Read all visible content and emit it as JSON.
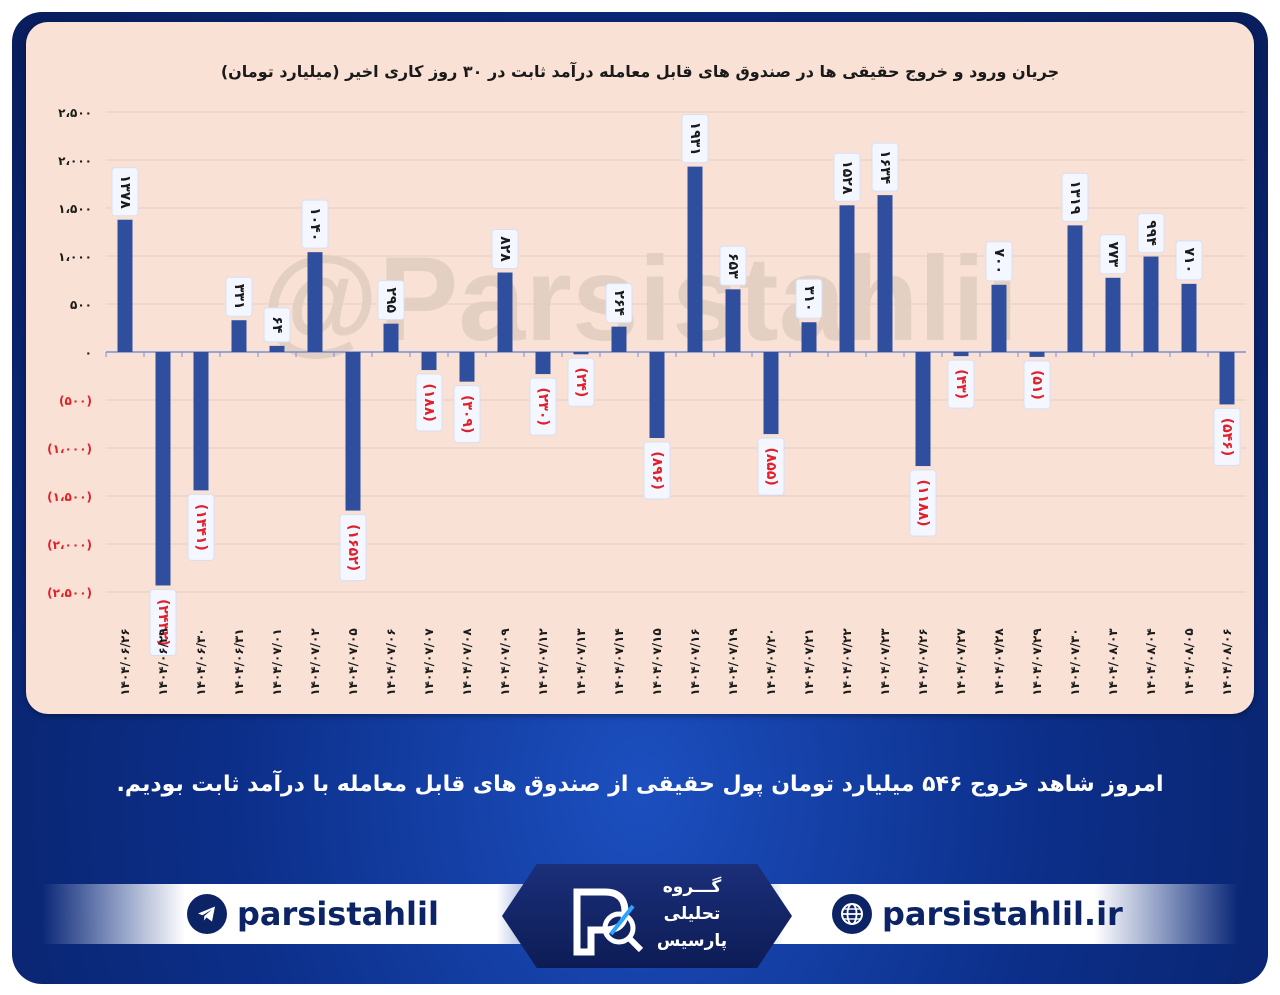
{
  "headline": "امروز شاهد خروج ۵۴۶ میلیارد تومان پول حقیقی از صندوق های قابل معامله با درآمد ثابت بودیم.",
  "watermark": "@Parsistahlil",
  "social": {
    "telegram_handle": "parsistahlil",
    "website": "parsistahlil.ir",
    "telegram_icon": "telegram-icon",
    "web_icon": "globe-icon"
  },
  "logo": {
    "line1": "گـــروه",
    "line2": "تحلیلی",
    "line3": "پارسیس"
  },
  "colors": {
    "bar": "#2f4f9e",
    "positive_label": "#1a1a1a",
    "negative_label": "#e0202a",
    "panel": "#f9e2d5",
    "frame": "#0c2f8a"
  },
  "chart_data": {
    "type": "bar",
    "title": "جریان ورود و خروج حقیقی ها در صندوق های قابل معامله درآمد ثابت در ۳۰ روز کاری اخیر (میلیارد تومان)",
    "xlabel": "",
    "ylabel": "",
    "ylim": [
      -2500,
      2500
    ],
    "yticks": [
      2500,
      2000,
      1500,
      1000,
      500,
      0,
      -500,
      -1000,
      -1500,
      -2000,
      -2500
    ],
    "ytick_labels": [
      "۲،۵۰۰",
      "۲،۰۰۰",
      "۱،۵۰۰",
      "۱،۰۰۰",
      "۵۰۰",
      "۰",
      "(۵۰۰)",
      "(۱،۰۰۰)",
      "(۱،۵۰۰)",
      "(۲،۰۰۰)",
      "(۲،۵۰۰)"
    ],
    "grid": true,
    "categories": [
      "۱۴۰۴/۰۶/۲۶",
      "۱۴۰۴/۰۶/۲۹",
      "۱۴۰۴/۰۶/۳۰",
      "۱۴۰۴/۰۶/۳۱",
      "۱۴۰۴/۰۷/۰۱",
      "۱۴۰۴/۰۷/۰۲",
      "۱۴۰۴/۰۷/۰۵",
      "۱۴۰۴/۰۷/۰۶",
      "۱۴۰۴/۰۷/۰۷",
      "۱۴۰۴/۰۷/۰۸",
      "۱۴۰۴/۰۷/۰۹",
      "۱۴۰۴/۰۷/۱۲",
      "۱۴۰۴/۰۷/۱۳",
      "۱۴۰۴/۰۷/۱۴",
      "۱۴۰۴/۰۷/۱۵",
      "۱۴۰۴/۰۷/۱۶",
      "۱۴۰۴/۰۷/۱۹",
      "۱۴۰۴/۰۷/۲۰",
      "۱۴۰۴/۰۷/۲۱",
      "۱۴۰۴/۰۷/۲۲",
      "۱۴۰۴/۰۷/۲۳",
      "۱۴۰۴/۰۷/۲۶",
      "۱۴۰۴/۰۷/۲۷",
      "۱۴۰۴/۰۷/۲۸",
      "۱۴۰۴/۰۷/۲۹",
      "۱۴۰۴/۰۷/۳۰",
      "۱۴۰۴/۰۸/۰۳",
      "۱۴۰۴/۰۸/۰۴",
      "۱۴۰۴/۰۸/۰۵",
      "۱۴۰۴/۰۸/۰۶"
    ],
    "values": [
      1378,
      -2432,
      -1441,
      331,
      64,
      1040,
      -1652,
      295,
      -188,
      -309,
      828,
      -230,
      -24,
      264,
      -896,
      1931,
      653,
      -855,
      310,
      1528,
      1634,
      -1188,
      -43,
      700,
      -51,
      1319,
      773,
      994,
      710,
      -546
    ],
    "data_labels": [
      "۱۳۷۸",
      "(۲۴۳۲)",
      "(۱۴۴۱)",
      "۳۳۱",
      "۶۴",
      "۱۰۴۰",
      "(۱۶۵۲)",
      "۲۹۵",
      "(۱۸۸)",
      "(۳۰۹)",
      "۸۲۸",
      "(۲۳۰)",
      "(۲۴)",
      "۲۶۴",
      "(۸۹۶)",
      "۱۹۳۱",
      "۶۵۳",
      "(۸۵۵)",
      "۳۱۰",
      "۱۵۲۸",
      "۱۶۳۴",
      "(۱۱۸۸)",
      "(۴۳)",
      "۷۰۰",
      "(۵۱)",
      "۱۳۱۹",
      "۷۷۳",
      "۹۹۴",
      "۷۱۰",
      "(۵۴۶)"
    ]
  }
}
